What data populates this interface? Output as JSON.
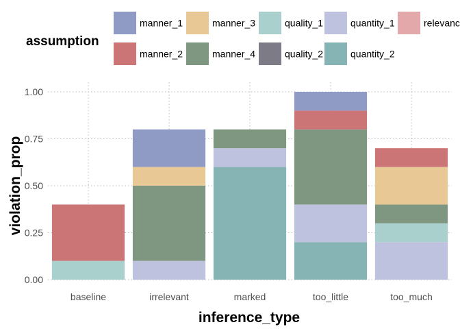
{
  "chart_data": {
    "type": "bar",
    "stacked": true,
    "xlabel": "inference_type",
    "ylabel": "violation_prop",
    "ylim": [
      0,
      1.05
    ],
    "yticks": [
      0,
      0.25,
      0.5,
      0.75,
      1.0
    ],
    "ytick_labels": [
      "0.00",
      "0.25",
      "0.50",
      "0.75",
      "1.00"
    ],
    "grid": true,
    "legend": {
      "title": "assumption",
      "position": "top",
      "entries": [
        {
          "key": "manner_1",
          "label": "manner_1",
          "color": "#8f9ac5"
        },
        {
          "key": "manner_2",
          "label": "manner_2",
          "color": "#cc7577"
        },
        {
          "key": "manner_3",
          "label": "manner_3",
          "color": "#e8c995"
        },
        {
          "key": "manner_4",
          "label": "manner_4",
          "color": "#7f9680"
        },
        {
          "key": "quality_1",
          "label": "quality_1",
          "color": "#a9d0cd"
        },
        {
          "key": "quality_2",
          "label": "quality_2",
          "color": "#7c7b86"
        },
        {
          "key": "quantity_1",
          "label": "quantity_1",
          "color": "#bfc2df"
        },
        {
          "key": "quantity_2",
          "label": "quantity_2",
          "color": "#86b4b4"
        },
        {
          "key": "relevance",
          "label": "relevance",
          "color": "#e3a8a9"
        }
      ]
    },
    "categories": [
      "baseline",
      "irrelevant",
      "marked",
      "too_little",
      "too_much"
    ],
    "series": [
      {
        "name": "quantity_2",
        "values": [
          0,
          0,
          0.6,
          0.2,
          0
        ]
      },
      {
        "name": "quantity_1",
        "values": [
          0,
          0.1,
          0.1,
          0.2,
          0.2
        ]
      },
      {
        "name": "quality_1",
        "values": [
          0.1,
          0,
          0,
          0,
          0.1
        ]
      },
      {
        "name": "manner_4",
        "values": [
          0,
          0.4,
          0.1,
          0.4,
          0.1
        ]
      },
      {
        "name": "manner_3",
        "values": [
          0,
          0.1,
          0,
          0,
          0.2
        ]
      },
      {
        "name": "manner_2",
        "values": [
          0.3,
          0,
          0,
          0.1,
          0.1
        ]
      },
      {
        "name": "manner_1",
        "values": [
          0,
          0.2,
          0,
          0.1,
          0
        ]
      }
    ]
  }
}
